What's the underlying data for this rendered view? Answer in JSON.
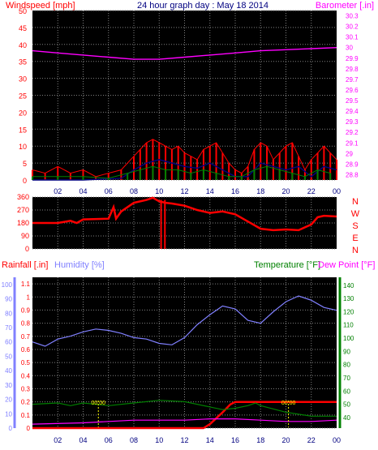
{
  "chart_data": [
    {
      "type": "line",
      "panel": "wind-pressure",
      "title": "24 hour graph day : May 18 2014",
      "left_axis_label": "Windspeed [mph]",
      "right_axis_label": "Barometer [.in]",
      "x_ticks": [
        "02",
        "04",
        "06",
        "08",
        "10",
        "12",
        "14",
        "16",
        "18",
        "20",
        "22",
        "00"
      ],
      "left_ticks": [
        "50",
        "45",
        "40",
        "35",
        "30",
        "25",
        "20",
        "15",
        "10",
        "5",
        "0"
      ],
      "left_ylim": [
        0,
        50
      ],
      "right_ticks": [
        "30.3",
        "30.2",
        "30.1",
        "30",
        "29.9",
        "29.8",
        "29.7",
        "29.6",
        "29.5",
        "29.4",
        "29.3",
        "29.2",
        "29.1",
        "29",
        "28.9",
        "28.8"
      ],
      "right_ylim": [
        28.75,
        30.35
      ],
      "grid": true,
      "series": [
        {
          "axis": "right",
          "color": "#ff00ff",
          "x": [
            0,
            2,
            4,
            6,
            8,
            10,
            12,
            14,
            16,
            18,
            20,
            22,
            24
          ],
          "values": [
            29.97,
            29.95,
            29.93,
            29.91,
            29.89,
            29.89,
            29.91,
            29.93,
            29.95,
            29.97,
            29.98,
            29.99,
            30.0
          ]
        },
        {
          "axis": "left",
          "style": "bars",
          "color": "#ff0000",
          "x": [
            0,
            1,
            2,
            3,
            4,
            5,
            6,
            7,
            8,
            8.5,
            9,
            9.5,
            10,
            10.5,
            11,
            11.5,
            12,
            12.5,
            13,
            13.5,
            14,
            14.5,
            15,
            15.5,
            16,
            16.5,
            17,
            17.5,
            18,
            18.5,
            19,
            19.5,
            20,
            20.5,
            21,
            21.5,
            22,
            22.5,
            23,
            23.5,
            24
          ],
          "values": [
            3,
            2,
            4,
            2,
            3,
            1,
            2,
            3,
            7,
            9,
            11,
            12,
            11,
            10,
            9,
            10,
            8,
            7,
            6,
            9,
            10,
            11,
            8,
            5,
            3,
            2,
            4,
            9,
            11,
            10,
            6,
            8,
            10,
            11,
            7,
            3,
            6,
            8,
            10,
            8,
            6
          ]
        },
        {
          "axis": "left",
          "color": "#000080",
          "x": [
            0,
            4,
            7,
            8,
            9,
            10,
            11,
            12,
            13,
            14,
            15,
            16,
            17,
            18,
            19,
            20,
            21,
            22,
            23,
            24
          ],
          "values": [
            0,
            0,
            0.5,
            3,
            5,
            6,
            5,
            4,
            3.5,
            5,
            3,
            1,
            1,
            5,
            4,
            3,
            4,
            1,
            4,
            3
          ]
        },
        {
          "axis": "left",
          "style": "bars",
          "color": "#008000",
          "x": [
            0,
            2,
            4,
            6,
            7.5,
            8.5,
            9.5,
            10.5,
            11.5,
            12.5,
            13.5,
            14.5,
            15.5,
            16.5,
            17.5,
            18.5,
            19.5,
            20.5,
            21.5,
            22.5,
            23.5
          ],
          "values": [
            1,
            1,
            1,
            0.5,
            2,
            3,
            4,
            3,
            3,
            2,
            3,
            2,
            1,
            1,
            3,
            4,
            3,
            2,
            1,
            3,
            2
          ]
        }
      ]
    },
    {
      "type": "line",
      "panel": "wind-direction",
      "left_ticks": [
        "360",
        "270",
        "180",
        "90",
        "0"
      ],
      "ylim": [
        0,
        360
      ],
      "right_labels": [
        "N",
        "W",
        "S",
        "E",
        "N"
      ],
      "series": [
        {
          "color": "#ff0000",
          "x": [
            0,
            2,
            3,
            3.5,
            4,
            6,
            6.4,
            6.6,
            7,
            8,
            9,
            9.5,
            10,
            10.5,
            11,
            12,
            13,
            14,
            15,
            16,
            17,
            18,
            19,
            20,
            21,
            22,
            22.5,
            23,
            24
          ],
          "values": [
            180,
            180,
            195,
            180,
            205,
            210,
            290,
            210,
            260,
            320,
            340,
            355,
            330,
            320,
            315,
            300,
            270,
            250,
            260,
            240,
            190,
            140,
            130,
            135,
            130,
            170,
            220,
            230,
            225
          ]
        }
      ]
    },
    {
      "type": "line",
      "panel": "rain-humidity-temperature",
      "legend": [
        "Rainfall [.in]",
        "Humidity [%]",
        "Temperature [°F]",
        "Dew Point [°F]"
      ],
      "x_ticks": [
        "02",
        "04",
        "06",
        "08",
        "10",
        "12",
        "14",
        "16",
        "18",
        "20",
        "22",
        "00"
      ],
      "humidity_ticks": [
        "100",
        "90",
        "80",
        "70",
        "60",
        "50",
        "40",
        "30",
        "20",
        "10",
        "0"
      ],
      "rain_ticks": [
        "1.1",
        "1",
        "0.9",
        "0.8",
        "0.7",
        "0.6",
        "0.5",
        "0.4",
        "0.3",
        "0.2",
        "0.1",
        "0"
      ],
      "temp_ticks": [
        "140",
        "130",
        "120",
        "110",
        "100",
        "90",
        "80",
        "70",
        "60",
        "50",
        "40"
      ],
      "rain_ylim": [
        0,
        1.15
      ],
      "humidity_ylim": [
        0,
        105
      ],
      "temp_ylim": [
        32,
        146
      ],
      "series": [
        {
          "name": "Humidity [%]",
          "axis": "humidity",
          "color": "#8080ff",
          "x": [
            0,
            1,
            2,
            3,
            4,
            5,
            6,
            7,
            8,
            9,
            10,
            11,
            12,
            13,
            14,
            15,
            16,
            17,
            18,
            19,
            20,
            21,
            22,
            23,
            24
          ],
          "values": [
            60,
            57,
            62,
            64,
            67,
            69,
            68,
            66,
            63,
            62,
            59,
            58,
            63,
            72,
            79,
            85,
            83,
            75,
            73,
            81,
            88,
            92,
            89,
            84,
            82
          ]
        },
        {
          "name": "Rainfall [.in]",
          "axis": "rain",
          "color": "#ff0000",
          "x": [
            0,
            13.5,
            14,
            15,
            15.6,
            16,
            24
          ],
          "values": [
            0,
            0,
            0.03,
            0.12,
            0.18,
            0.2,
            0.2
          ]
        },
        {
          "name": "Temperature [°F]",
          "axis": "temp",
          "color": "#008000",
          "x": [
            0,
            2,
            3,
            4,
            6,
            8,
            10,
            12,
            14,
            15,
            16,
            17,
            17.6,
            18,
            20,
            22,
            24
          ],
          "values": [
            50,
            51,
            49,
            51,
            49,
            51,
            53,
            52,
            48,
            46,
            47,
            49,
            51,
            49,
            44,
            41,
            41
          ]
        },
        {
          "name": "Dew Point [°F]",
          "axis": "temp",
          "color": "#ff00ff",
          "x": [
            0,
            4,
            8,
            10,
            12,
            14,
            16,
            18,
            20,
            22,
            24
          ],
          "values": [
            35,
            36,
            38,
            38,
            38,
            39,
            39,
            38,
            37,
            37,
            38
          ]
        }
      ],
      "markers": [
        {
          "x": 5.2,
          "label": "00:00",
          "color": "#ffff00"
        },
        {
          "x": 20.2,
          "label": "00:00",
          "color": "#ffff00"
        }
      ]
    }
  ],
  "colors": {
    "background": "#ffffff",
    "plot_background": "#000000",
    "grid": "#808080",
    "wind_axis": "#ff0000",
    "barometer_axis": "#ff00ff",
    "title": "#000080",
    "humidity": "#8080ff",
    "temperature_axis": "#008000"
  }
}
